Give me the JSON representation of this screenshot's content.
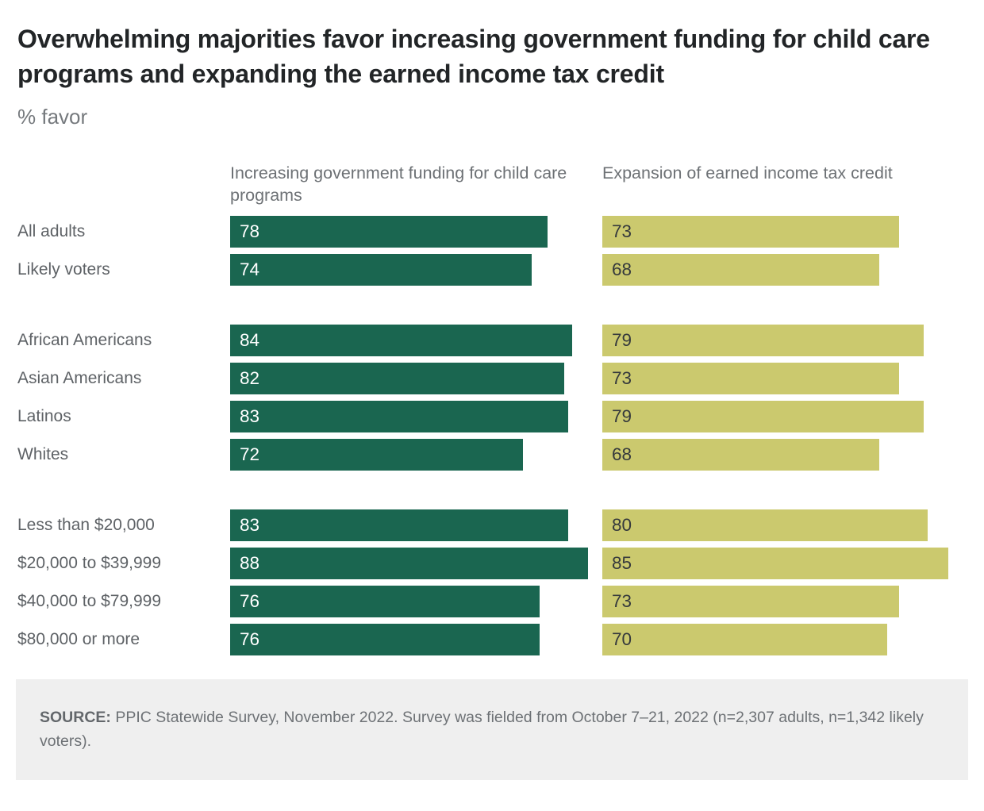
{
  "title": "Overwhelming majorities favor increasing government funding for child care programs and expanding the earned income tax credit",
  "subtitle": "% favor",
  "chart_data": {
    "type": "bar",
    "orientation": "horizontal",
    "xlim": [
      0,
      100
    ],
    "value_unit": "% favor",
    "series": [
      {
        "id": "child-care-funding",
        "name": "Increasing government funding for child care programs",
        "color": "#1a6650",
        "value_color": "#ffffff"
      },
      {
        "id": "eitc-expansion",
        "name": "Expansion of earned income tax credit",
        "color": "#cbc96e",
        "value_color": "#35393c"
      }
    ],
    "groups": [
      {
        "rows": [
          {
            "label": "All adults",
            "values": [
              78,
              73
            ]
          },
          {
            "label": "Likely voters",
            "values": [
              74,
              68
            ]
          }
        ]
      },
      {
        "rows": [
          {
            "label": "African Americans",
            "values": [
              84,
              79
            ]
          },
          {
            "label": "Asian Americans",
            "values": [
              82,
              73
            ]
          },
          {
            "label": "Latinos",
            "values": [
              83,
              79
            ]
          },
          {
            "label": "Whites",
            "values": [
              72,
              68
            ]
          }
        ]
      },
      {
        "rows": [
          {
            "label": "Less than $20,000",
            "values": [
              83,
              80
            ]
          },
          {
            "label": "$20,000 to $39,999",
            "values": [
              88,
              85
            ]
          },
          {
            "label": "$40,000 to $79,999",
            "values": [
              76,
              73
            ]
          },
          {
            "label": "$80,000 or more",
            "values": [
              76,
              70
            ]
          }
        ]
      }
    ]
  },
  "source": {
    "prefix": "SOURCE:",
    "text": " PPIC Statewide Survey, November 2022. Survey was fielded from October 7–21, 2022 (n=2,307 adults, n=1,342 likely voters)."
  }
}
